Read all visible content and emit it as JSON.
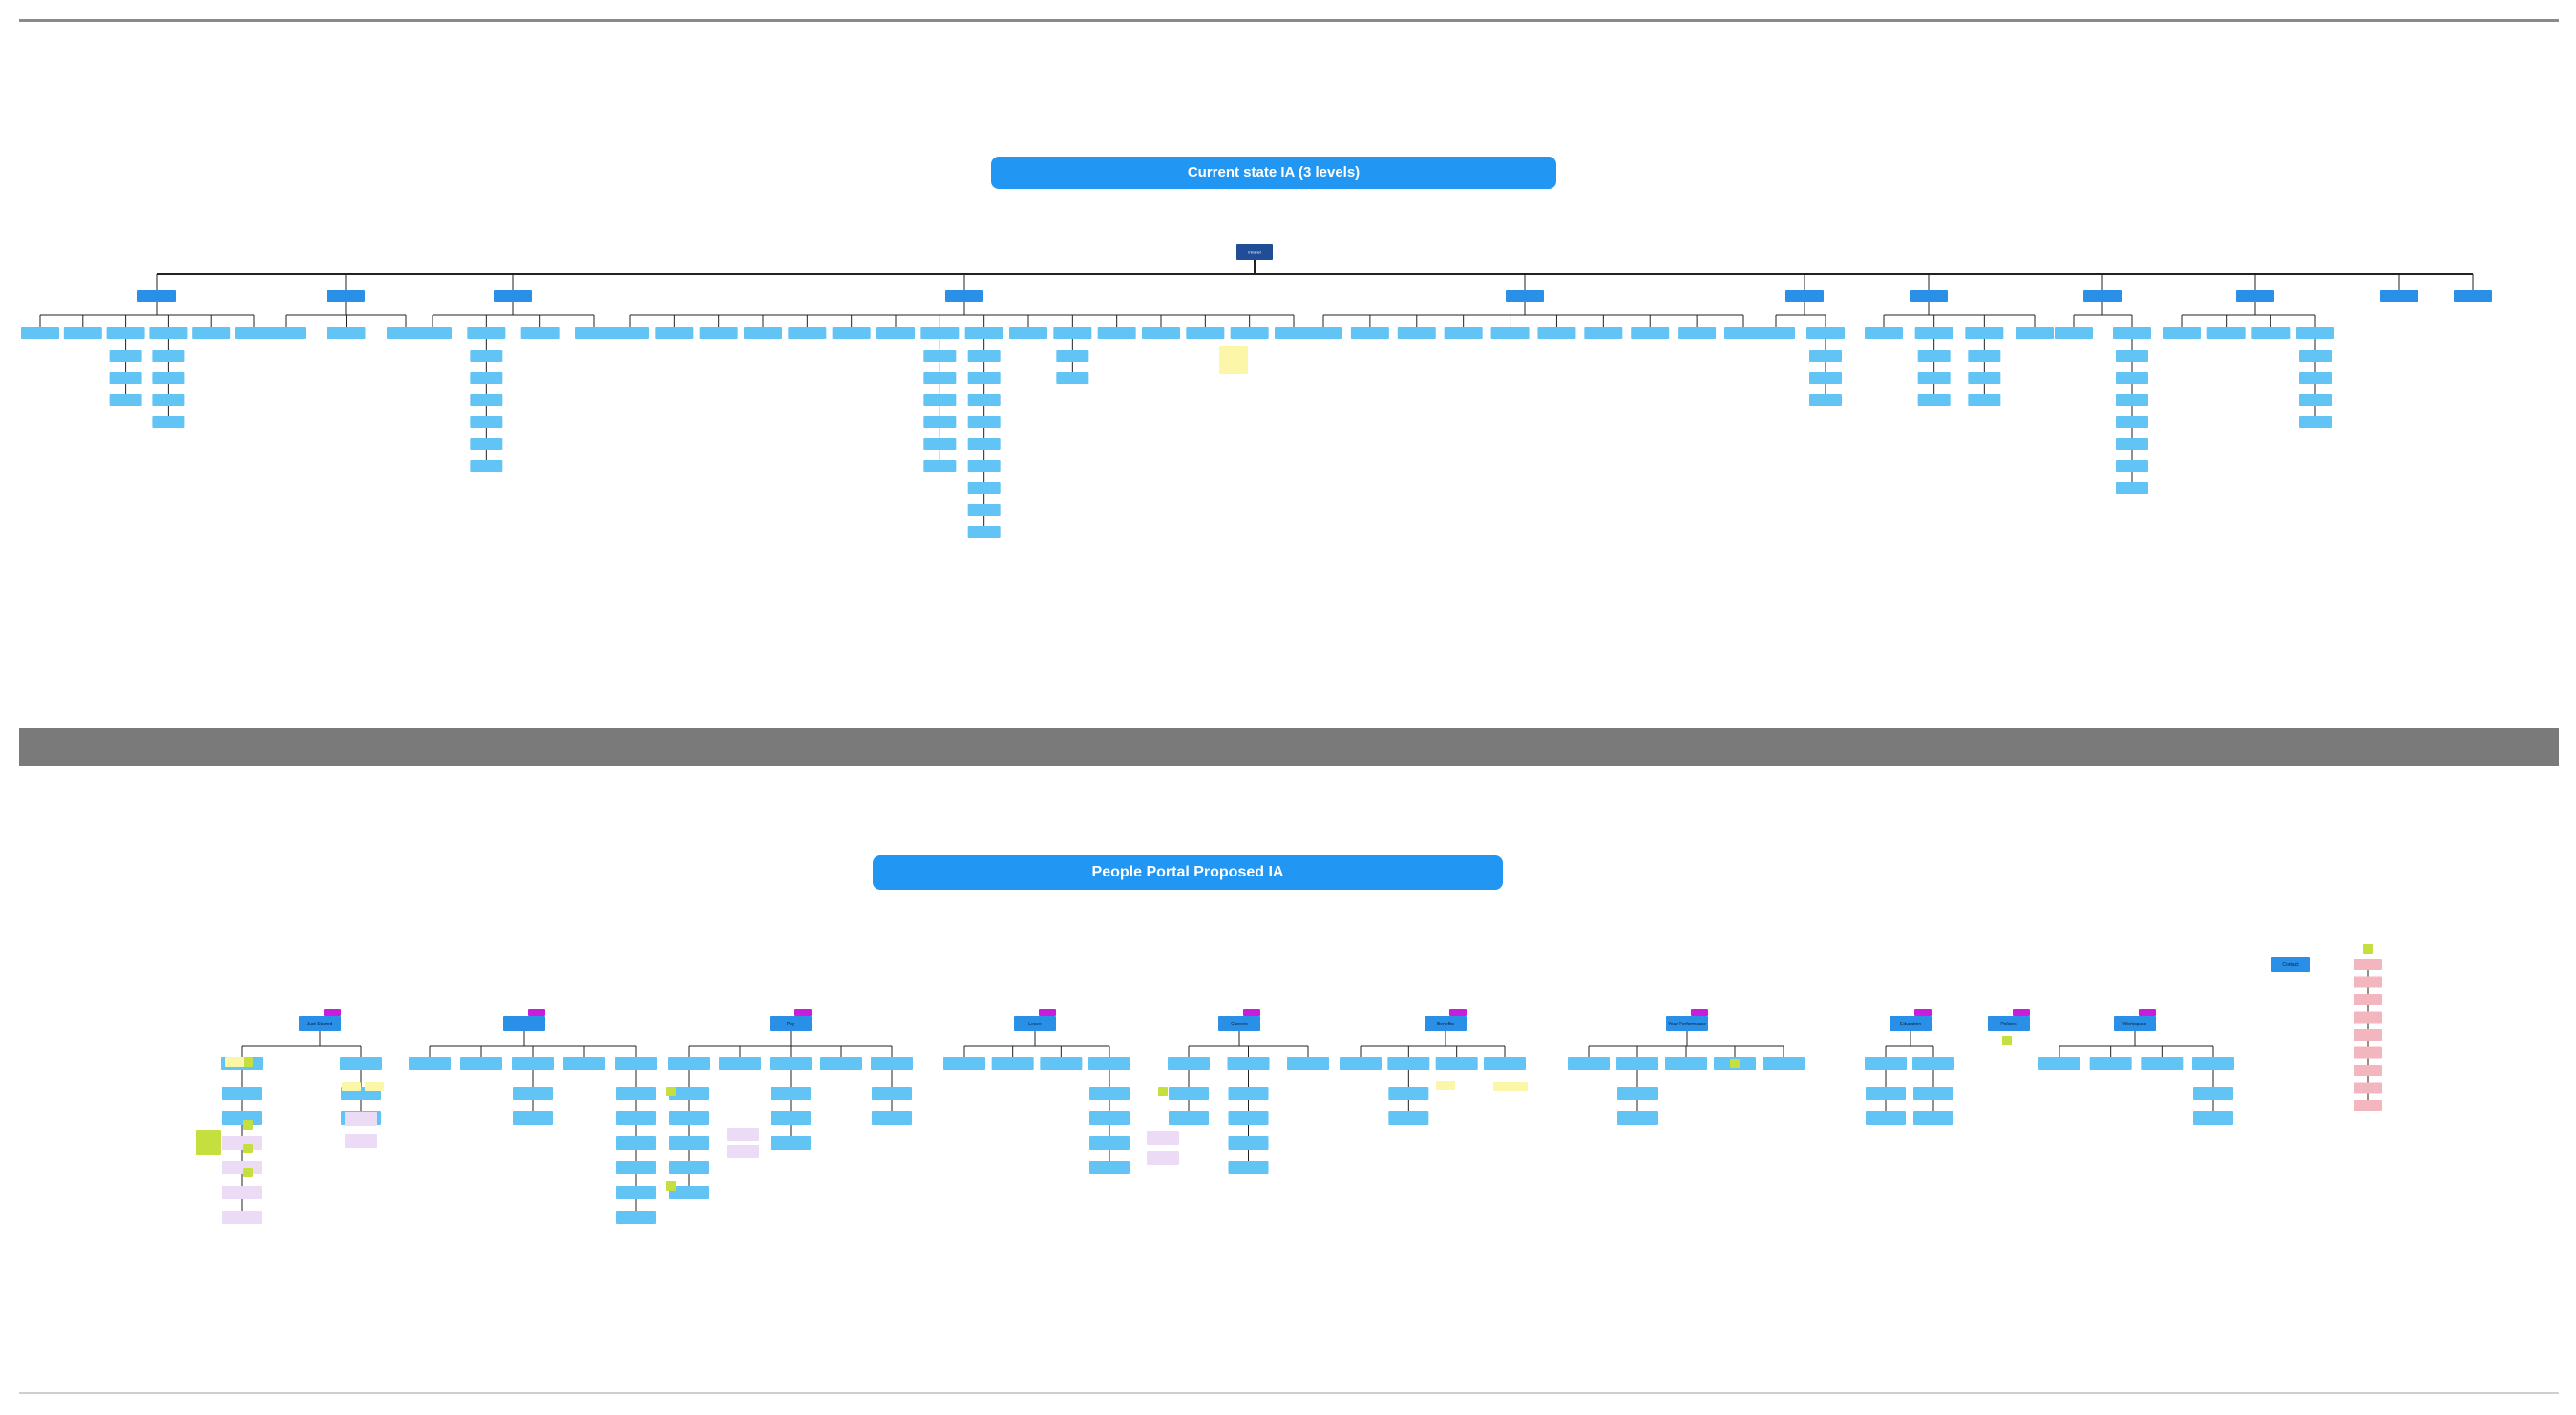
{
  "titles": {
    "current": "Current state IA (3 levels)",
    "proposed": "People Portal Proposed IA"
  },
  "colors": {
    "title_blue": "#2196f3",
    "header_blue": "#2a8fe6",
    "node_blue": "#62c3f5",
    "root_navy": "#1f4e96",
    "connector": "#222222",
    "sticky_yellow": "#fcf7a8",
    "sticky_green": "#c5df3f",
    "sticky_lavender": "#ebdbf5",
    "sticky_pink": "#f4b6be",
    "tag_magenta": "#c81edc",
    "band_gray": "#7a7a7a"
  },
  "current_state": {
    "root": "Intranet",
    "groups": [
      {
        "label": "",
        "children": [
          {
            "label": "",
            "kids": []
          },
          {
            "label": "",
            "kids": []
          },
          {
            "label": "",
            "kids": [
              "",
              "",
              ""
            ]
          },
          {
            "label": "",
            "kids": [
              "",
              "",
              "",
              ""
            ]
          },
          {
            "label": "",
            "kids": []
          },
          {
            "label": "",
            "kids": []
          }
        ]
      },
      {
        "label": "",
        "children": [
          {
            "label": "",
            "kids": []
          },
          {
            "label": "",
            "kids": []
          },
          {
            "label": "",
            "kids": []
          }
        ]
      },
      {
        "label": "",
        "children": [
          {
            "label": "",
            "kids": []
          },
          {
            "label": "",
            "kids": [
              "",
              "",
              "",
              "",
              "",
              ""
            ]
          },
          {
            "label": "",
            "kids": []
          },
          {
            "label": "",
            "kids": []
          }
        ]
      },
      {
        "label": "",
        "children": [
          {
            "label": "",
            "kids": []
          },
          {
            "label": "",
            "kids": []
          },
          {
            "label": "",
            "kids": []
          },
          {
            "label": "",
            "kids": []
          },
          {
            "label": "",
            "kids": []
          },
          {
            "label": "",
            "kids": []
          },
          {
            "label": "",
            "kids": []
          },
          {
            "label": "",
            "kids": [
              "",
              "",
              "",
              "",
              "",
              ""
            ]
          },
          {
            "label": "",
            "kids": [
              "",
              "",
              "",
              "",
              "",
              "",
              "",
              "",
              ""
            ]
          },
          {
            "label": "",
            "kids": []
          },
          {
            "label": "",
            "kids": [
              "",
              ""
            ]
          },
          {
            "label": "",
            "kids": []
          },
          {
            "label": "",
            "kids": []
          },
          {
            "label": "",
            "kids": []
          },
          {
            "label": "",
            "kids": []
          },
          {
            "label": "",
            "kids": []
          }
        ]
      },
      {
        "label": "",
        "children": [
          {
            "label": "",
            "kids": []
          },
          {
            "label": "",
            "kids": []
          },
          {
            "label": "",
            "kids": []
          },
          {
            "label": "",
            "kids": []
          },
          {
            "label": "",
            "kids": []
          },
          {
            "label": "",
            "kids": []
          },
          {
            "label": "",
            "kids": []
          },
          {
            "label": "",
            "kids": []
          },
          {
            "label": "",
            "kids": []
          },
          {
            "label": "",
            "kids": []
          }
        ]
      },
      {
        "label": "",
        "children": [
          {
            "label": "",
            "kids": []
          },
          {
            "label": "",
            "kids": [
              "",
              "",
              ""
            ]
          }
        ]
      },
      {
        "label": "",
        "children": [
          {
            "label": "",
            "kids": []
          },
          {
            "label": "",
            "kids": [
              "",
              "",
              ""
            ]
          },
          {
            "label": "",
            "kids": [
              "",
              "",
              ""
            ]
          },
          {
            "label": "",
            "kids": []
          }
        ]
      },
      {
        "label": "",
        "children": [
          {
            "label": "",
            "kids": []
          },
          {
            "label": "",
            "kids": [
              "",
              "",
              "",
              "",
              "",
              "",
              ""
            ]
          }
        ]
      },
      {
        "label": "",
        "children": [
          {
            "label": "",
            "kids": []
          },
          {
            "label": "",
            "kids": []
          },
          {
            "label": "",
            "kids": []
          },
          {
            "label": "",
            "kids": [
              "",
              "",
              "",
              ""
            ]
          }
        ]
      },
      {
        "label": "",
        "children": []
      },
      {
        "label": "",
        "children": []
      }
    ]
  },
  "proposed": {
    "groups": [
      {
        "label": "Just Started",
        "children": [
          {
            "label": "",
            "kids": [
              "",
              "",
              "",
              "",
              "",
              ""
            ]
          },
          {
            "label": "",
            "kids": [
              "",
              ""
            ]
          }
        ]
      },
      {
        "label": "",
        "children": [
          {
            "label": "",
            "kids": []
          },
          {
            "label": "",
            "kids": []
          },
          {
            "label": "",
            "kids": [
              "",
              ""
            ]
          },
          {
            "label": "",
            "kids": []
          },
          {
            "label": "",
            "kids": [
              "",
              "",
              "",
              "",
              "",
              ""
            ]
          }
        ]
      },
      {
        "label": "Pay",
        "children": [
          {
            "label": "",
            "kids": [
              "",
              "",
              "",
              "",
              ""
            ]
          },
          {
            "label": "",
            "kids": []
          },
          {
            "label": "",
            "kids": [
              "",
              "",
              ""
            ]
          },
          {
            "label": "",
            "kids": []
          },
          {
            "label": "",
            "kids": [
              "",
              ""
            ]
          }
        ]
      },
      {
        "label": "Leave",
        "children": [
          {
            "label": "",
            "kids": []
          },
          {
            "label": "",
            "kids": []
          },
          {
            "label": "",
            "kids": []
          },
          {
            "label": "",
            "kids": [
              "",
              "",
              "",
              ""
            ]
          }
        ]
      },
      {
        "label": "Careers",
        "children": [
          {
            "label": "",
            "kids": [
              "",
              ""
            ]
          },
          {
            "label": "",
            "kids": [
              "",
              "",
              "",
              ""
            ]
          },
          {
            "label": "",
            "kids": []
          }
        ]
      },
      {
        "label": "Benefits",
        "children": [
          {
            "label": "",
            "kids": []
          },
          {
            "label": "",
            "kids": [
              "",
              ""
            ]
          },
          {
            "label": "",
            "kids": []
          },
          {
            "label": "",
            "kids": []
          }
        ]
      },
      {
        "label": "Your Performance",
        "children": [
          {
            "label": "",
            "kids": []
          },
          {
            "label": "",
            "kids": [
              "",
              ""
            ]
          },
          {
            "label": "",
            "kids": []
          },
          {
            "label": "",
            "kids": []
          },
          {
            "label": "",
            "kids": []
          }
        ]
      },
      {
        "label": "Education",
        "children": [
          {
            "label": "",
            "kids": [
              "",
              ""
            ]
          },
          {
            "label": "",
            "kids": [
              "",
              ""
            ]
          }
        ]
      },
      {
        "label": "Policies",
        "children": []
      },
      {
        "label": "Workspace",
        "children": [
          {
            "label": "",
            "kids": []
          },
          {
            "label": "",
            "kids": []
          },
          {
            "label": "",
            "kids": []
          },
          {
            "label": "",
            "kids": [
              "",
              ""
            ]
          }
        ]
      }
    ],
    "contact_label": "Contact",
    "pink_list": [
      "",
      "",
      "",
      "",
      "",
      "",
      "",
      "",
      ""
    ]
  }
}
